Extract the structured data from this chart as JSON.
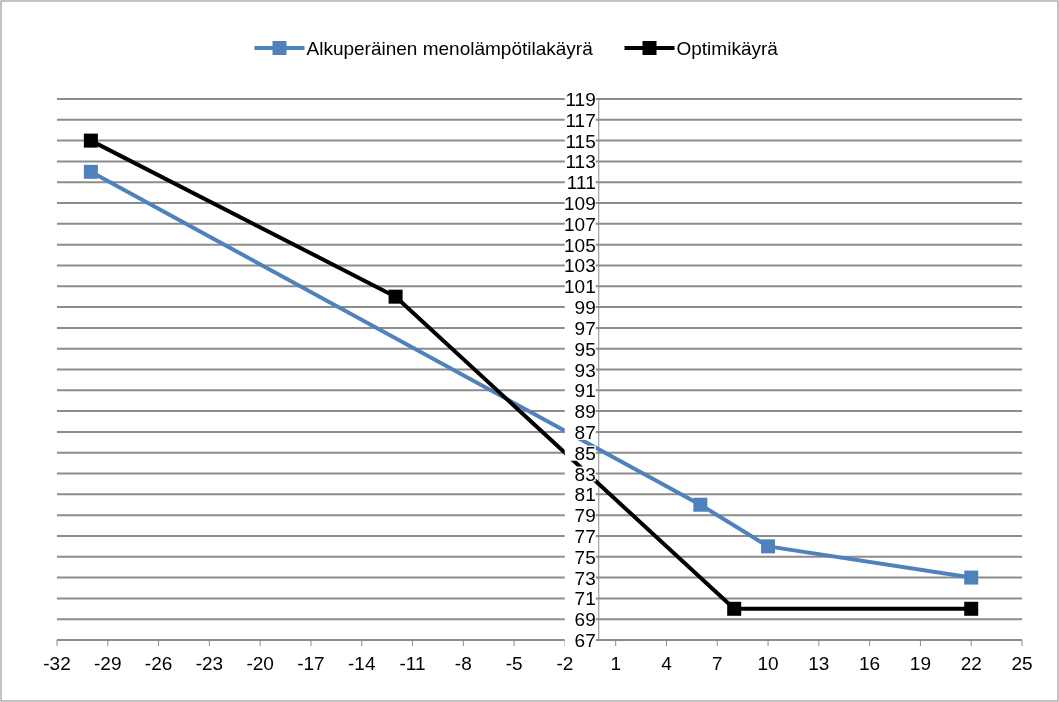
{
  "chart_data": {
    "type": "line",
    "series": [
      {
        "name": "Alkuperäinen menolämpötilakäyrä",
        "color": "#4f81bd",
        "x": [
          -30,
          6,
          10,
          22
        ],
        "values": [
          112,
          80,
          76,
          73
        ]
      },
      {
        "name": "Optimikäyrä",
        "color": "#000000",
        "x": [
          -30,
          -12,
          8,
          22
        ],
        "values": [
          115,
          100,
          70,
          70
        ]
      }
    ],
    "xlim": [
      -32,
      25
    ],
    "xticks": [
      -32,
      -29,
      -26,
      -23,
      -20,
      -17,
      -14,
      -11,
      -8,
      -5,
      -2,
      1,
      4,
      7,
      10,
      13,
      16,
      19,
      22,
      25
    ],
    "ylim": [
      67,
      119
    ],
    "yticks": [
      67,
      69,
      71,
      73,
      75,
      77,
      79,
      81,
      83,
      85,
      87,
      89,
      91,
      93,
      95,
      97,
      99,
      101,
      103,
      105,
      107,
      109,
      111,
      113,
      115,
      117,
      119
    ],
    "grid": "y",
    "legend": "top",
    "marker": "square",
    "line_style": "solid"
  }
}
